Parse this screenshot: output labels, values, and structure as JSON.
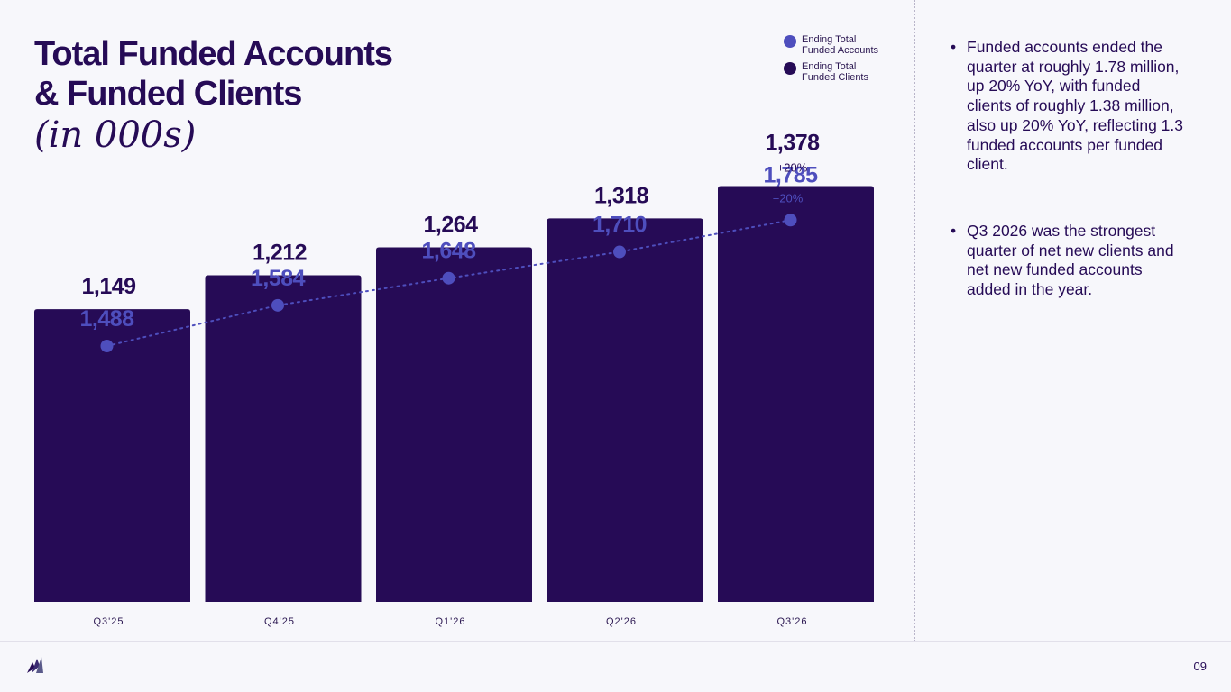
{
  "title_line1": "Total Funded Accounts",
  "title_line2": "& Funded Clients",
  "subtitle": "(in 000s)",
  "page_number": "09",
  "logo_icon": "feather-logo-icon",
  "colors": {
    "bar": "#260b56",
    "line": "#4e4ebd",
    "background": "#f7f7fb"
  },
  "legend": [
    {
      "label": "Ending Total Funded Accounts",
      "color": "#4e4ebd"
    },
    {
      "label": "Ending Total Funded Clients",
      "color": "#260b56"
    }
  ],
  "bullets": [
    "Funded accounts ended the quarter at roughly 1.78 million, up 20% YoY, with funded clients of roughly 1.38 million, also up 20% YoY, reflecting 1.3 funded accounts per funded client.",
    "Q3 2026 was the strongest quarter of net new clients and net new funded accounts added in the year."
  ],
  "chart_data": {
    "type": "bar",
    "title": "Total Funded Accounts & Funded Clients (in 000s)",
    "categories": [
      "Q3'25",
      "Q4'25",
      "Q1'26",
      "Q2'26",
      "Q3'26"
    ],
    "series": [
      {
        "name": "Ending Total Funded Clients",
        "chart": "bar",
        "values": [
          1149,
          1212,
          1264,
          1318,
          1378
        ],
        "labels": [
          "1,149",
          "1,212",
          "1,264",
          "1,318",
          "1,378"
        ]
      },
      {
        "name": "Ending Total Funded Accounts",
        "chart": "line",
        "style": "dotted",
        "values": [
          1488,
          1584,
          1648,
          1710,
          1785
        ],
        "labels": [
          "1,488",
          "1,584",
          "1,648",
          "1,710",
          "1,785"
        ]
      }
    ],
    "annotations": [
      {
        "series": "Ending Total Funded Accounts",
        "category": "Q3'26",
        "text": "+20%"
      },
      {
        "series": "Ending Total Funded Clients",
        "category": "Q3'26",
        "text": "+20%"
      }
    ],
    "xlabel": "",
    "ylabel": "",
    "grid": false,
    "legend_position": "top-right"
  }
}
